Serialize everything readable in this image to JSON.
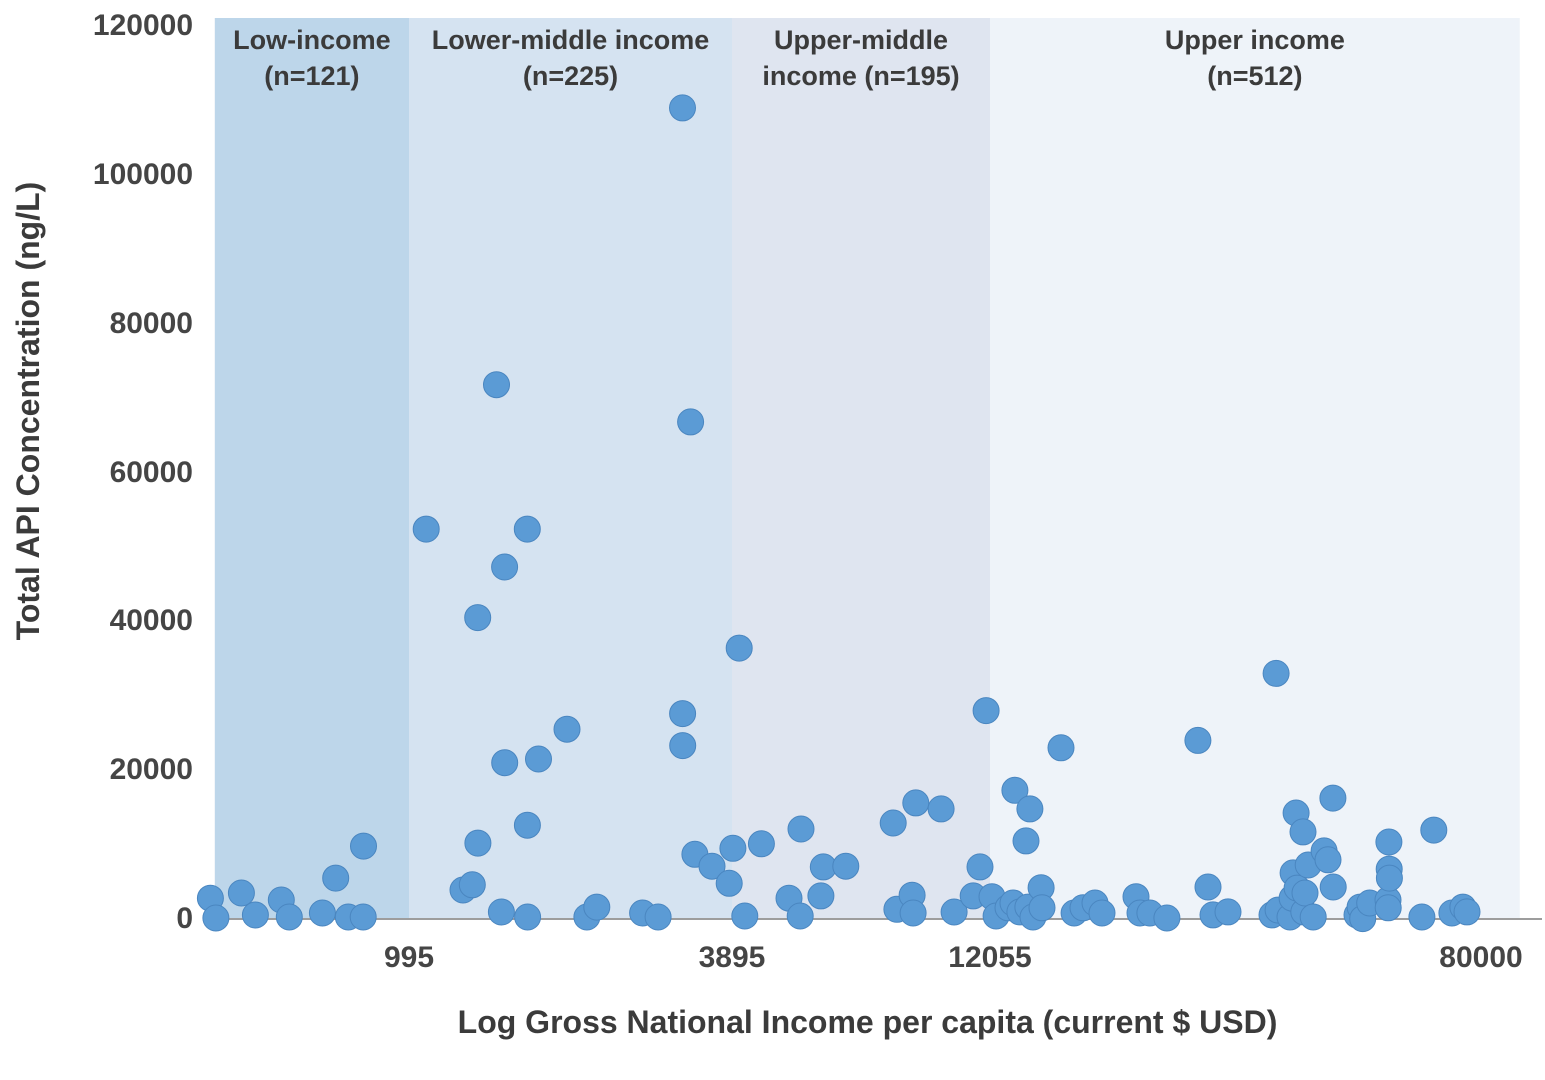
{
  "chart_data": {
    "type": "scatter",
    "title": "",
    "xlabel": "Log Gross National Income per capita (current $ USD)",
    "ylabel": "Total API Concentration (ng/L)",
    "x_scale": "log",
    "xlim": [
      438,
      92900
    ],
    "ylim": [
      0,
      120000
    ],
    "x_ticks": [
      995,
      3895,
      12055,
      80000
    ],
    "y_ticks": [
      0,
      20000,
      40000,
      60000,
      80000,
      100000,
      120000
    ],
    "grid": false,
    "legend": false,
    "point_color": "#5b9bd5",
    "point_stroke": "#4a86c0",
    "axis_line_color": "#9d9d9d",
    "text_color": "#454545",
    "bands": [
      {
        "label_line1": "Low-income",
        "label_line2": "(n=121)",
        "x_from": 438,
        "x_to": 995,
        "color": "#bdd6ea"
      },
      {
        "label_line1": "Lower-middle income",
        "label_line2": "(n=225)",
        "x_from": 995,
        "x_to": 3895,
        "color": "#d5e3f1"
      },
      {
        "label_line1": "Upper-middle",
        "label_line2": "income (n=195)",
        "x_from": 3895,
        "x_to": 12055,
        "color": "#dfe5f0"
      },
      {
        "label_line1": "Upper income",
        "label_line2": "(n=512)",
        "x_from": 12055,
        "x_to": 92900,
        "color": "#eef3f9"
      }
    ],
    "series": [
      {
        "name": "Low-income",
        "points": [
          [
            430,
            2800
          ],
          [
            440,
            130
          ],
          [
            490,
            3500
          ],
          [
            520,
            540
          ],
          [
            580,
            2550
          ],
          [
            600,
            270
          ],
          [
            690,
            800
          ],
          [
            730,
            5500
          ],
          [
            770,
            270
          ],
          [
            820,
            270
          ],
          [
            821,
            9800
          ]
        ]
      },
      {
        "name": "Lower-middle income",
        "points": [
          [
            1070,
            52400
          ],
          [
            1250,
            3900
          ],
          [
            1300,
            4600
          ],
          [
            1330,
            40500
          ],
          [
            1331,
            10200
          ],
          [
            1440,
            71800
          ],
          [
            1470,
            940
          ],
          [
            1490,
            47300
          ],
          [
            1491,
            21000
          ],
          [
            1640,
            52400
          ],
          [
            1641,
            12600
          ],
          [
            1642,
            270
          ],
          [
            1720,
            21500
          ],
          [
            1940,
            25500
          ],
          [
            2110,
            270
          ],
          [
            2200,
            1600
          ],
          [
            2670,
            800
          ],
          [
            2850,
            270
          ],
          [
            3160,
            109000
          ],
          [
            3161,
            27600
          ],
          [
            3162,
            23300
          ],
          [
            3270,
            66800
          ],
          [
            3330,
            8700
          ]
        ]
      },
      {
        "name": "Upper-middle income",
        "points": [
          [
            3580,
            7100
          ],
          [
            3850,
            4800
          ],
          [
            3910,
            9500
          ],
          [
            4020,
            36400
          ],
          [
            4120,
            400
          ],
          [
            4430,
            10100
          ],
          [
            5000,
            2800
          ],
          [
            5250,
            400
          ],
          [
            5270,
            12100
          ],
          [
            5750,
            3100
          ],
          [
            5810,
            7000
          ],
          [
            6410,
            7100
          ],
          [
            7890,
            12900
          ],
          [
            8020,
            1300
          ],
          [
            8570,
            3200
          ],
          [
            8610,
            800
          ],
          [
            8710,
            15600
          ],
          [
            9730,
            14800
          ],
          [
            10300,
            940
          ],
          [
            11200,
            3100
          ],
          [
            11540,
            7000
          ],
          [
            11850,
            28000
          ]
        ]
      },
      {
        "name": "Upper income",
        "points": [
          [
            12150,
            3000
          ],
          [
            12340,
            400
          ],
          [
            12920,
            1500
          ],
          [
            13170,
            2150
          ],
          [
            13270,
            17300
          ],
          [
            13530,
            950
          ],
          [
            13850,
            10500
          ],
          [
            13950,
            1600
          ],
          [
            14060,
            14800
          ],
          [
            14230,
            270
          ],
          [
            14680,
            4200
          ],
          [
            14730,
            1500
          ],
          [
            15850,
            23000
          ],
          [
            16670,
            800
          ],
          [
            17250,
            1500
          ],
          [
            18070,
            2150
          ],
          [
            18560,
            800
          ],
          [
            21160,
            3000
          ],
          [
            21490,
            800
          ],
          [
            22330,
            800
          ],
          [
            23840,
            130
          ],
          [
            26870,
            24000
          ],
          [
            27930,
            4300
          ],
          [
            28470,
            550
          ],
          [
            30170,
            950
          ],
          [
            35750,
            550
          ],
          [
            36310,
            33000
          ],
          [
            36590,
            1200
          ],
          [
            38320,
            270
          ],
          [
            38620,
            2800
          ],
          [
            38770,
            6200
          ],
          [
            39220,
            14250
          ],
          [
            39370,
            4150
          ],
          [
            40280,
            11700
          ],
          [
            40400,
            950
          ],
          [
            40600,
            3500
          ],
          [
            41100,
            7250
          ],
          [
            41900,
            270
          ],
          [
            43700,
            9150
          ],
          [
            44350,
            7950
          ],
          [
            45200,
            16250
          ],
          [
            45250,
            4300
          ],
          [
            49600,
            550
          ],
          [
            50200,
            1600
          ],
          [
            50700,
            50
          ],
          [
            52100,
            2150
          ],
          [
            55900,
            2550
          ],
          [
            55950,
            1500
          ],
          [
            56100,
            10350
          ],
          [
            56150,
            6700
          ],
          [
            56200,
            5500
          ],
          [
            63700,
            270
          ],
          [
            66700,
            11950
          ],
          [
            71500,
            800
          ],
          [
            74600,
            1600
          ],
          [
            75800,
            950
          ]
        ]
      }
    ]
  }
}
